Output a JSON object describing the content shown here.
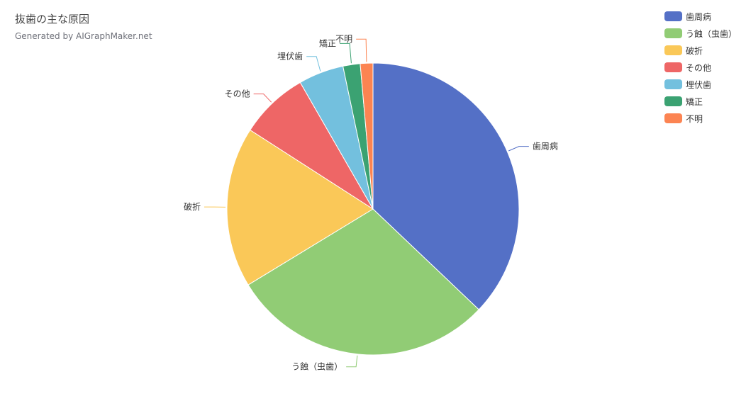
{
  "header": {
    "title": "抜歯の主な原因",
    "subtitle": "Generated by AIGraphMaker.net"
  },
  "chart_data": {
    "type": "pie",
    "categories": [
      "歯周病",
      "う蝕（虫歯）",
      "破折",
      "その他",
      "埋伏歯",
      "矯正",
      "不明"
    ],
    "values": [
      37.1,
      29.2,
      17.8,
      7.6,
      5.0,
      1.9,
      1.4
    ],
    "colors": [
      "#5470c6",
      "#91cc75",
      "#fac858",
      "#ee6666",
      "#73c0de",
      "#3ba272",
      "#fc8452"
    ],
    "legend_position": "top-right",
    "start_angle": "top",
    "direction": "clockwise"
  }
}
